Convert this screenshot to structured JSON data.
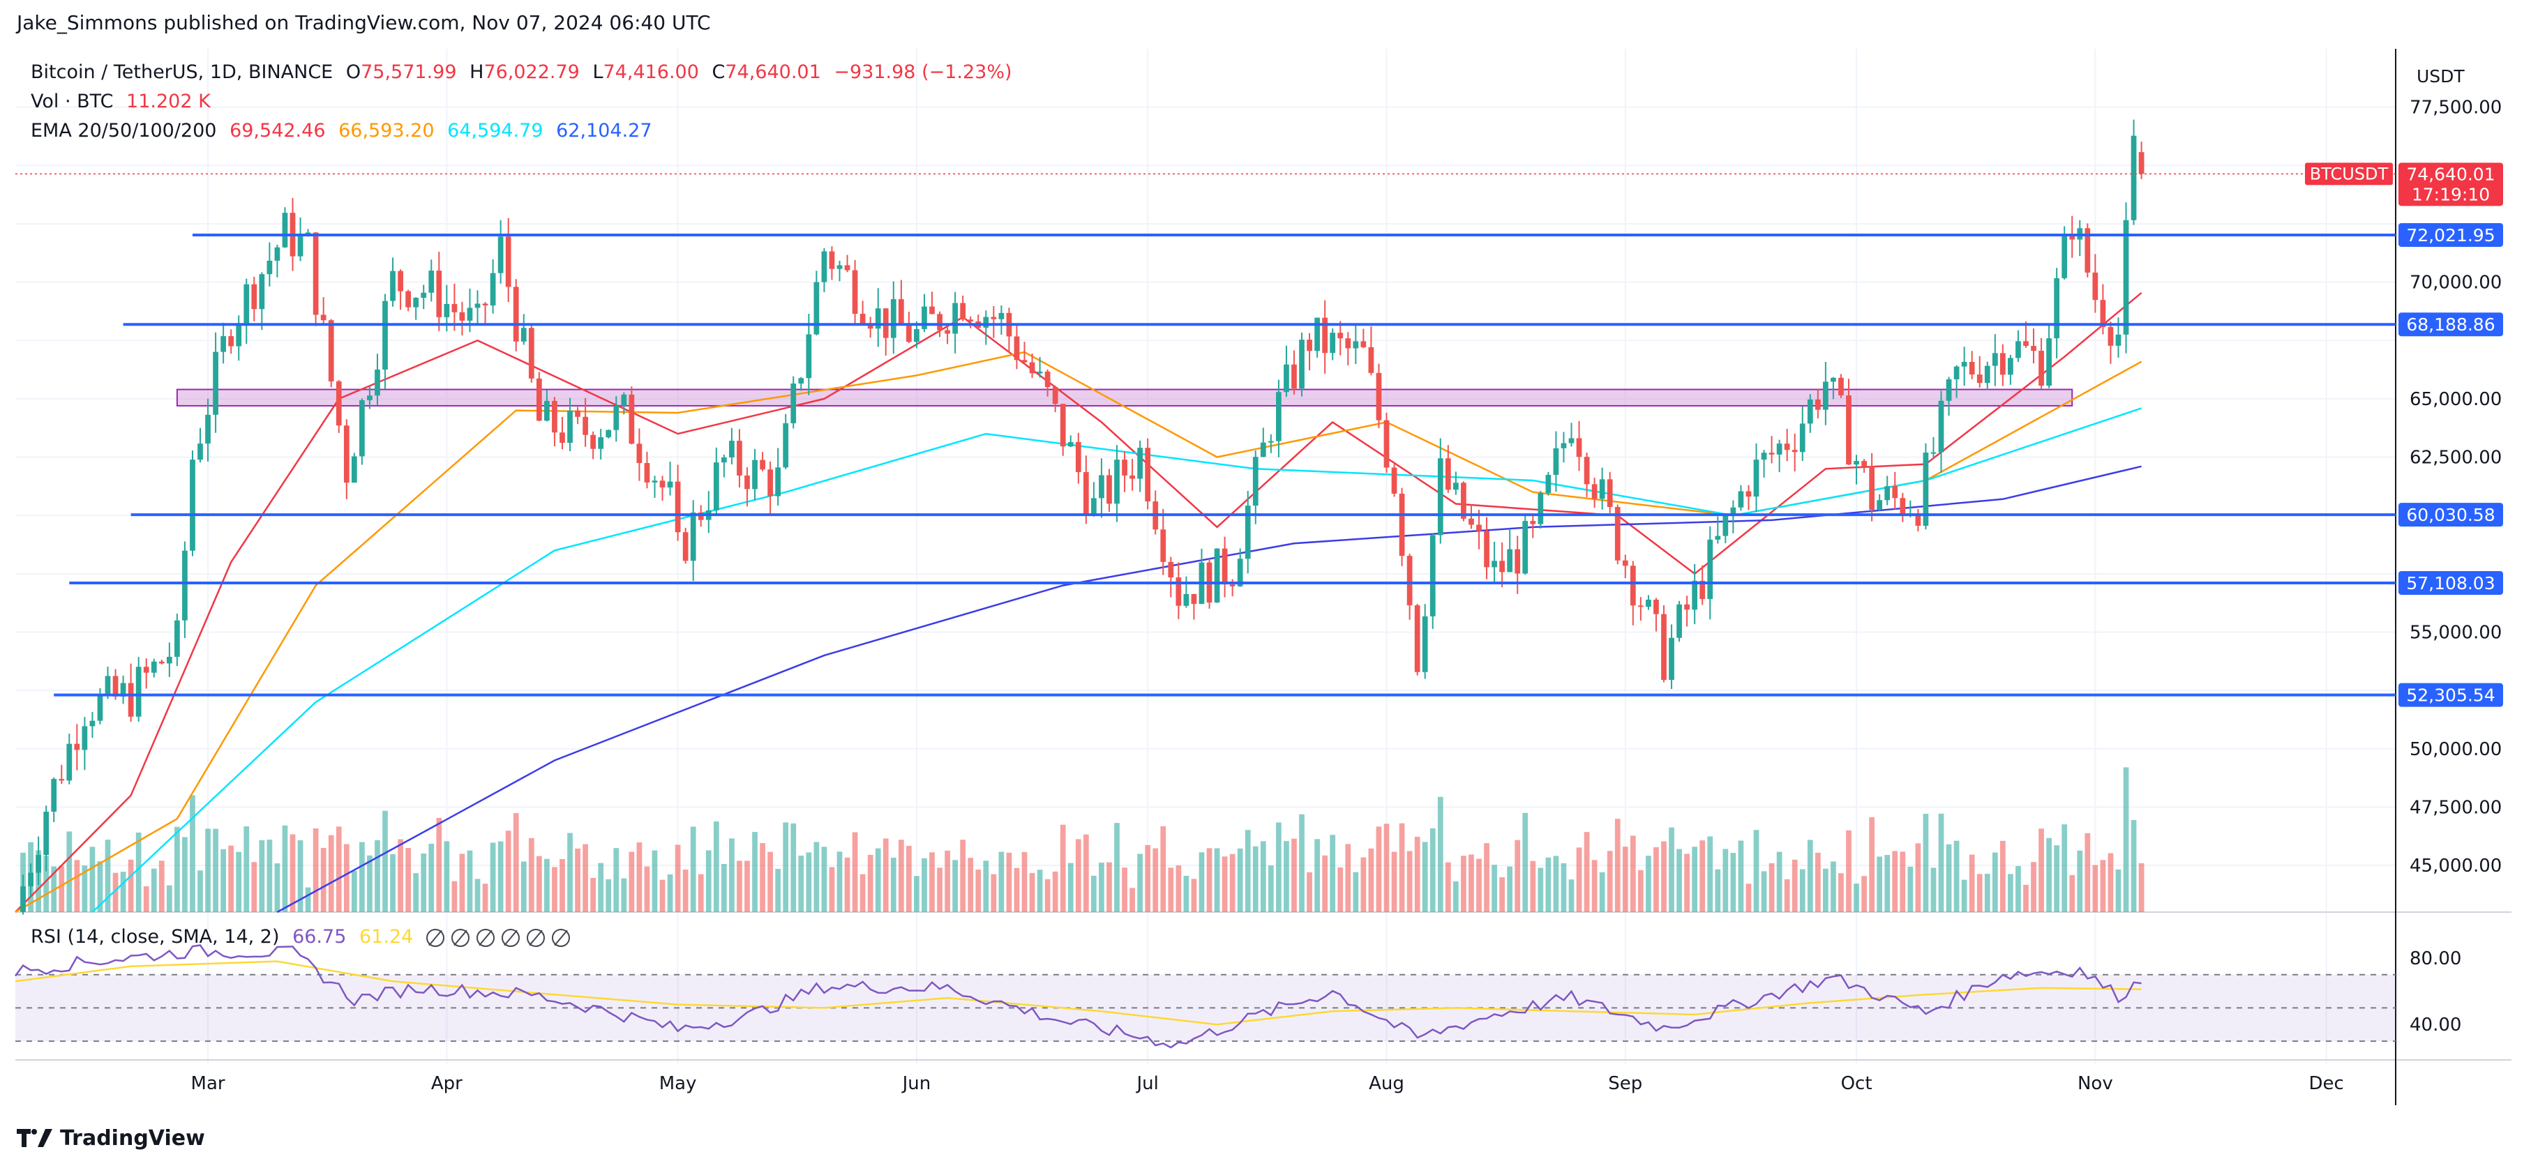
{
  "header": {
    "publisher": "Jake_Simmons published on TradingView.com, Nov 07, 2024 06:40 UTC"
  },
  "legend": {
    "symbol": "Bitcoin / TetherUS, 1D, BINANCE",
    "open_label": "O",
    "open": "75,571.99",
    "high_label": "H",
    "high": "76,022.79",
    "low_label": "L",
    "low": "74,416.00",
    "close_label": "C",
    "close": "74,640.01",
    "change": "−931.98 (−1.23%)",
    "vol_label": "Vol · BTC",
    "vol": "11.202 K",
    "ema_label": "EMA 20/50/100/200",
    "ema20": "69,542.46",
    "ema50": "66,593.20",
    "ema100": "64,594.79",
    "ema200": "62,104.27"
  },
  "rsi_legend": {
    "label": "RSI (14, close, SMA, 14, 2)",
    "rsi": "66.75",
    "sma": "61.24",
    "nan_marks": [
      "∅",
      "∅",
      "∅",
      "∅",
      "∅",
      "∅"
    ]
  },
  "axis": {
    "currency": "USDT",
    "price_ticks": [
      "77,500.00",
      "70,000.00",
      "65,000.00",
      "62,500.00",
      "55,000.00",
      "50,000.00",
      "47,500.00",
      "45,000.00"
    ],
    "rsi_ticks": [
      "80.00",
      "40.00"
    ],
    "months": [
      "Mar",
      "Apr",
      "May",
      "Jun",
      "Jul",
      "Aug",
      "Sep",
      "Oct",
      "Nov",
      "Dec"
    ]
  },
  "tags": {
    "symbol_tag": "BTCUSDT",
    "last_price": "74,640.01",
    "countdown": "17:19:10"
  },
  "levels": [
    "72,021.95",
    "68,188.86",
    "60,030.58",
    "57,108.03",
    "52,305.54"
  ],
  "footer": {
    "brand": "TradingView"
  },
  "colors": {
    "up": "#26a69a",
    "down": "#ef5350",
    "level_line": "#2962ff",
    "ema20": "#f23645",
    "ema50": "#ff9800",
    "ema100": "#00e5ff",
    "ema200": "#3c3ce8",
    "rsi": "#7e57c2",
    "rsi_sma": "#fdd835",
    "zone": "#ce93d8"
  },
  "chart_data": {
    "type": "candlestick",
    "title": "Bitcoin / TetherUS, 1D, BINANCE",
    "timeframe": "1D",
    "x_range": [
      "2024-02-05",
      "2024-12-10"
    ],
    "y_range": [
      43000,
      80000
    ],
    "price_axis": "right",
    "grid": true,
    "months": [
      "Mar",
      "Apr",
      "May",
      "Jun",
      "Jul",
      "Aug",
      "Sep",
      "Oct",
      "Nov",
      "Dec"
    ],
    "horizontal_levels": [
      {
        "price": 72021.95,
        "start": "2024-02-28"
      },
      {
        "price": 68188.86,
        "start": "2024-02-19"
      },
      {
        "price": 60030.58,
        "start": "2024-02-20"
      },
      {
        "price": 57108.03,
        "start": "2024-02-12"
      },
      {
        "price": 52305.54,
        "start": "2024-02-10"
      }
    ],
    "zone": {
      "low": 64700,
      "high": 65400,
      "start": "2024-02-26",
      "end": "2024-10-29"
    },
    "last_price": 74640.01,
    "series_close": [
      {
        "date": "2024-02-05",
        "close": 43000
      },
      {
        "date": "2024-02-09",
        "close": 47500
      },
      {
        "date": "2024-02-14",
        "close": 51800
      },
      {
        "date": "2024-02-20",
        "close": 52300
      },
      {
        "date": "2024-02-26",
        "close": 54500
      },
      {
        "date": "2024-02-28",
        "close": 62500
      },
      {
        "date": "2024-03-04",
        "close": 68300
      },
      {
        "date": "2024-03-11",
        "close": 72100
      },
      {
        "date": "2024-03-14",
        "close": 71400
      },
      {
        "date": "2024-03-19",
        "close": 62000
      },
      {
        "date": "2024-03-25",
        "close": 70000
      },
      {
        "date": "2024-03-30",
        "close": 69600
      },
      {
        "date": "2024-04-05",
        "close": 68000
      },
      {
        "date": "2024-04-08",
        "close": 71400
      },
      {
        "date": "2024-04-13",
        "close": 64000
      },
      {
        "date": "2024-04-18",
        "close": 63500
      },
      {
        "date": "2024-04-24",
        "close": 64300
      },
      {
        "date": "2024-04-30",
        "close": 60600
      },
      {
        "date": "2024-05-01",
        "close": 58300
      },
      {
        "date": "2024-05-07",
        "close": 62300
      },
      {
        "date": "2024-05-14",
        "close": 61500
      },
      {
        "date": "2024-05-20",
        "close": 71400
      },
      {
        "date": "2024-05-27",
        "close": 68500
      },
      {
        "date": "2024-06-01",
        "close": 67700
      },
      {
        "date": "2024-06-07",
        "close": 69300
      },
      {
        "date": "2024-06-12",
        "close": 68300
      },
      {
        "date": "2024-06-18",
        "close": 65000
      },
      {
        "date": "2024-06-24",
        "close": 60300
      },
      {
        "date": "2024-06-30",
        "close": 62700
      },
      {
        "date": "2024-07-05",
        "close": 56700
      },
      {
        "date": "2024-07-12",
        "close": 57800
      },
      {
        "date": "2024-07-17",
        "close": 64000
      },
      {
        "date": "2024-07-22",
        "close": 67600
      },
      {
        "date": "2024-07-29",
        "close": 66800
      },
      {
        "date": "2024-08-02",
        "close": 61500
      },
      {
        "date": "2024-08-05",
        "close": 54000
      },
      {
        "date": "2024-08-08",
        "close": 61700
      },
      {
        "date": "2024-08-15",
        "close": 57500
      },
      {
        "date": "2024-08-20",
        "close": 59000
      },
      {
        "date": "2024-08-25",
        "close": 64200
      },
      {
        "date": "2024-08-31",
        "close": 58900
      },
      {
        "date": "2024-09-06",
        "close": 53900
      },
      {
        "date": "2024-09-11",
        "close": 57300
      },
      {
        "date": "2024-09-17",
        "close": 61600
      },
      {
        "date": "2024-09-23",
        "close": 63600
      },
      {
        "date": "2024-09-27",
        "close": 65800
      },
      {
        "date": "2024-10-03",
        "close": 60700
      },
      {
        "date": "2024-10-09",
        "close": 60600
      },
      {
        "date": "2024-10-14",
        "close": 66000
      },
      {
        "date": "2024-10-21",
        "close": 67300
      },
      {
        "date": "2024-10-25",
        "close": 66600
      },
      {
        "date": "2024-10-29",
        "close": 72700
      },
      {
        "date": "2024-11-01",
        "close": 69400
      },
      {
        "date": "2024-11-04",
        "close": 67800
      },
      {
        "date": "2024-11-06",
        "close": 75600
      },
      {
        "date": "2024-11-07",
        "close": 74640
      }
    ],
    "ema_series": [
      {
        "name": "EMA 20",
        "color": "#f23645",
        "points": [
          [
            "2024-02-05",
            43000
          ],
          [
            "2024-02-20",
            48000
          ],
          [
            "2024-03-04",
            58000
          ],
          [
            "2024-03-18",
            65000
          ],
          [
            "2024-04-05",
            67500
          ],
          [
            "2024-05-01",
            63500
          ],
          [
            "2024-05-20",
            65000
          ],
          [
            "2024-06-07",
            68500
          ],
          [
            "2024-06-25",
            64000
          ],
          [
            "2024-07-10",
            59500
          ],
          [
            "2024-07-25",
            64000
          ],
          [
            "2024-08-10",
            60500
          ],
          [
            "2024-08-31",
            60000
          ],
          [
            "2024-09-10",
            57500
          ],
          [
            "2024-09-27",
            62000
          ],
          [
            "2024-10-10",
            62200
          ],
          [
            "2024-10-28",
            66800
          ],
          [
            "2024-11-07",
            69542
          ]
        ]
      },
      {
        "name": "EMA 50",
        "color": "#ff9800",
        "points": [
          [
            "2024-02-05",
            43000
          ],
          [
            "2024-02-26",
            47000
          ],
          [
            "2024-03-15",
            57000
          ],
          [
            "2024-04-10",
            64500
          ],
          [
            "2024-05-01",
            64400
          ],
          [
            "2024-06-01",
            66000
          ],
          [
            "2024-06-15",
            67000
          ],
          [
            "2024-07-10",
            62500
          ],
          [
            "2024-08-01",
            64000
          ],
          [
            "2024-08-20",
            61000
          ],
          [
            "2024-09-15",
            60000
          ],
          [
            "2024-10-10",
            61500
          ],
          [
            "2024-11-07",
            66593
          ]
        ]
      },
      {
        "name": "EMA 100",
        "color": "#00e5ff",
        "points": [
          [
            "2024-02-15",
            43000
          ],
          [
            "2024-03-15",
            52000
          ],
          [
            "2024-04-15",
            58500
          ],
          [
            "2024-05-15",
            61000
          ],
          [
            "2024-06-10",
            63500
          ],
          [
            "2024-07-15",
            62000
          ],
          [
            "2024-08-20",
            61500
          ],
          [
            "2024-09-15",
            60000
          ],
          [
            "2024-10-10",
            61500
          ],
          [
            "2024-11-07",
            64595
          ]
        ]
      },
      {
        "name": "EMA 200",
        "color": "#3c3ce8",
        "points": [
          [
            "2024-03-10",
            43000
          ],
          [
            "2024-04-15",
            49500
          ],
          [
            "2024-05-20",
            54000
          ],
          [
            "2024-06-20",
            57000
          ],
          [
            "2024-07-20",
            58800
          ],
          [
            "2024-08-20",
            59500
          ],
          [
            "2024-09-20",
            59800
          ],
          [
            "2024-10-20",
            60700
          ],
          [
            "2024-11-07",
            62104
          ]
        ]
      }
    ],
    "rsi": {
      "y_range": [
        25,
        90
      ],
      "ticks": [
        80,
        40
      ],
      "upper_band": 70,
      "lower_band": 30,
      "midline": 50,
      "rsi_points": [
        [
          "2024-02-05",
          72
        ],
        [
          "2024-02-15",
          78
        ],
        [
          "2024-02-28",
          84
        ],
        [
          "2024-03-12",
          83
        ],
        [
          "2024-03-20",
          55
        ],
        [
          "2024-03-28",
          62
        ],
        [
          "2024-04-12",
          58
        ],
        [
          "2024-04-22",
          48
        ],
        [
          "2024-05-01",
          37
        ],
        [
          "2024-05-10",
          45
        ],
        [
          "2024-05-20",
          63
        ],
        [
          "2024-06-05",
          62
        ],
        [
          "2024-06-20",
          42
        ],
        [
          "2024-07-05",
          28
        ],
        [
          "2024-07-15",
          45
        ],
        [
          "2024-07-25",
          60
        ],
        [
          "2024-08-05",
          32
        ],
        [
          "2024-08-15",
          46
        ],
        [
          "2024-08-25",
          56
        ],
        [
          "2024-09-06",
          38
        ],
        [
          "2024-09-20",
          58
        ],
        [
          "2024-09-28",
          68
        ],
        [
          "2024-10-10",
          47
        ],
        [
          "2024-10-20",
          70
        ],
        [
          "2024-10-30",
          73
        ],
        [
          "2024-11-04",
          57
        ],
        [
          "2024-11-07",
          66.75
        ]
      ],
      "sma_points": [
        [
          "2024-02-05",
          66
        ],
        [
          "2024-02-20",
          75
        ],
        [
          "2024-03-10",
          78
        ],
        [
          "2024-03-25",
          66
        ],
        [
          "2024-04-15",
          58
        ],
        [
          "2024-05-01",
          52
        ],
        [
          "2024-05-20",
          50
        ],
        [
          "2024-06-05",
          56
        ],
        [
          "2024-06-25",
          48
        ],
        [
          "2024-07-10",
          40
        ],
        [
          "2024-07-25",
          48
        ],
        [
          "2024-08-10",
          50
        ],
        [
          "2024-08-25",
          48
        ],
        [
          "2024-09-10",
          46
        ],
        [
          "2024-09-25",
          53
        ],
        [
          "2024-10-10",
          58
        ],
        [
          "2024-10-25",
          62
        ],
        [
          "2024-11-07",
          61.24
        ]
      ]
    }
  }
}
